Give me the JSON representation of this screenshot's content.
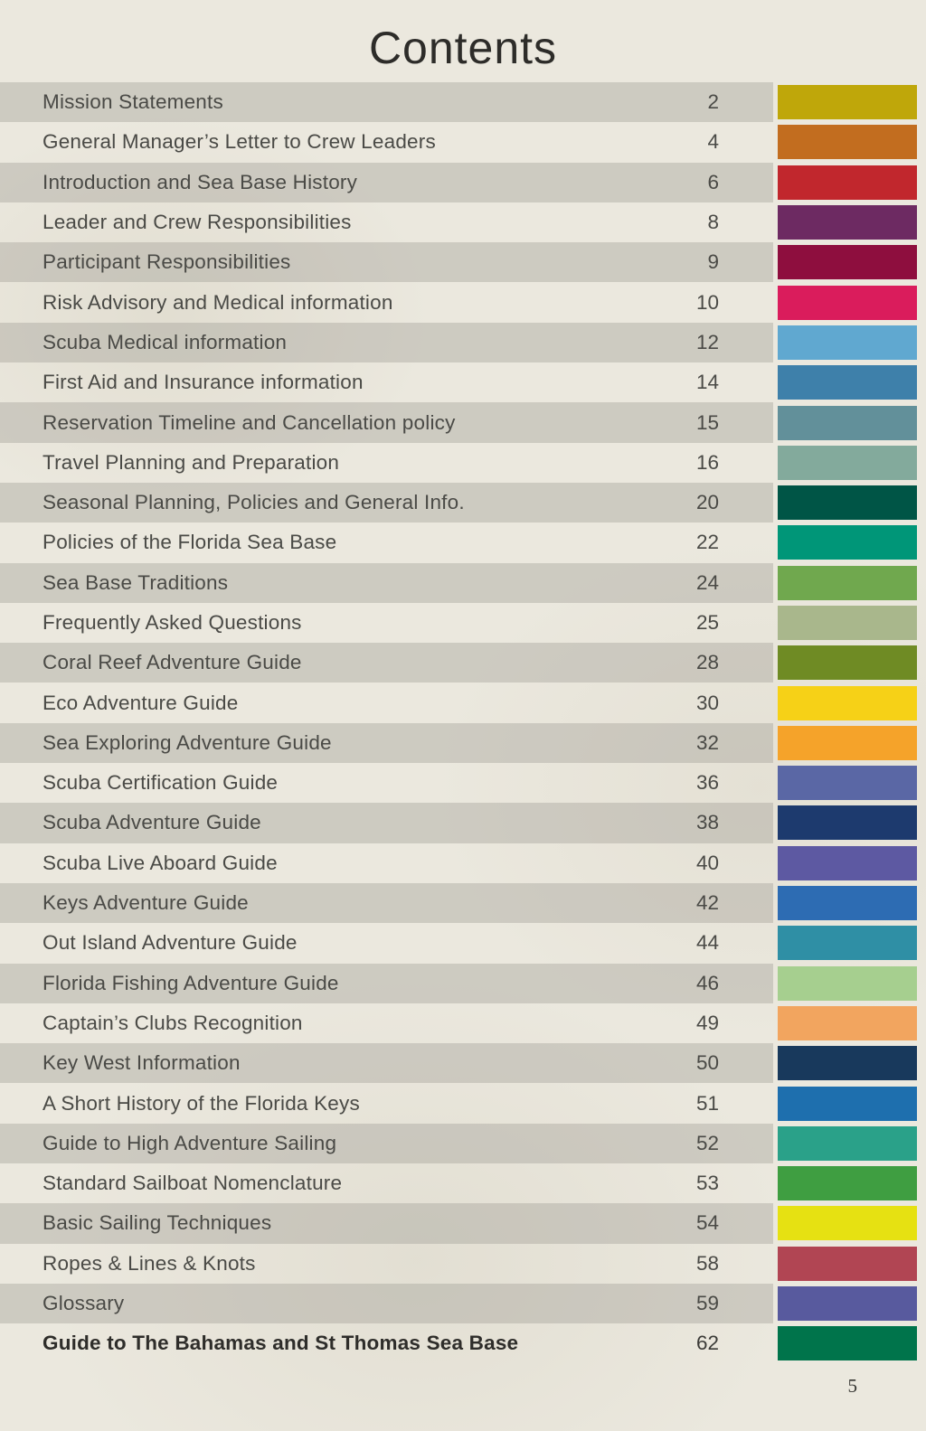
{
  "page": {
    "title": "Contents",
    "footer_page_number": "5"
  },
  "toc": {
    "entries": [
      {
        "label": "Mission Statements",
        "page": "2",
        "color": "#bfa70a",
        "bold": false
      },
      {
        "label": "General Manager’s Letter to Crew Leaders",
        "page": "4",
        "color": "#c26d1f",
        "bold": false
      },
      {
        "label": "Introduction and Sea Base History",
        "page": "6",
        "color": "#c1272d",
        "bold": false
      },
      {
        "label": "Leader and Crew Responsibilities",
        "page": "8",
        "color": "#6d2a62",
        "bold": false
      },
      {
        "label": "Participant Responsibilities",
        "page": "9",
        "color": "#8e0e3e",
        "bold": false
      },
      {
        "label": "Risk Advisory and Medical information",
        "page": "10",
        "color": "#da1c5c",
        "bold": false
      },
      {
        "label": "Scuba Medical information",
        "page": "12",
        "color": "#60a8d0",
        "bold": false
      },
      {
        "label": "First Aid and Insurance information",
        "page": "14",
        "color": "#3e80aa",
        "bold": false
      },
      {
        "label": "Reservation Timeline and Cancellation policy",
        "page": "15",
        "color": "#62909a",
        "bold": false
      },
      {
        "label": "Travel Planning and Preparation",
        "page": "16",
        "color": "#83aa9c",
        "bold": false
      },
      {
        "label": "Seasonal Planning, Policies and General Info.",
        "page": "20",
        "color": "#005546",
        "bold": false
      },
      {
        "label": "Policies of the Florida Sea Base",
        "page": "22",
        "color": "#009678",
        "bold": false
      },
      {
        "label": "Sea Base Traditions",
        "page": "24",
        "color": "#70a84e",
        "bold": false
      },
      {
        "label": "Frequently Asked Questions",
        "page": "25",
        "color": "#a9b78c",
        "bold": false
      },
      {
        "label": "Coral Reef Adventure Guide",
        "page": "28",
        "color": "#6f8b24",
        "bold": false
      },
      {
        "label": "Eco Adventure Guide",
        "page": "30",
        "color": "#f6d117",
        "bold": false
      },
      {
        "label": "Sea Exploring Adventure Guide",
        "page": "32",
        "color": "#f5a32a",
        "bold": false
      },
      {
        "label": "Scuba Certification Guide",
        "page": "36",
        "color": "#5a67a5",
        "bold": false
      },
      {
        "label": "Scuba Adventure Guide",
        "page": "38",
        "color": "#1d3a6e",
        "bold": false
      },
      {
        "label": "Scuba Live Aboard Guide",
        "page": "40",
        "color": "#5d59a2",
        "bold": false
      },
      {
        "label": "Keys Adventure Guide",
        "page": "42",
        "color": "#2d6cb3",
        "bold": false
      },
      {
        "label": "Out Island Adventure Guide",
        "page": "44",
        "color": "#2f8fa5",
        "bold": false
      },
      {
        "label": "Florida Fishing Adventure Guide",
        "page": "46",
        "color": "#a6cf8f",
        "bold": false
      },
      {
        "label": "Captain’s Clubs Recognition",
        "page": "49",
        "color": "#f2a55f",
        "bold": false
      },
      {
        "label": "Key West Information",
        "page": "50",
        "color": "#18395c",
        "bold": false
      },
      {
        "label": "A Short History of the Florida Keys",
        "page": "51",
        "color": "#1e6fae",
        "bold": false
      },
      {
        "label": "Guide to High Adventure Sailing",
        "page": "52",
        "color": "#2aa189",
        "bold": false
      },
      {
        "label": "Standard Sailboat Nomenclature",
        "page": "53",
        "color": "#3f9e41",
        "bold": false
      },
      {
        "label": "Basic Sailing Techniques",
        "page": "54",
        "color": "#e6e112",
        "bold": false
      },
      {
        "label": "Ropes & Lines & Knots",
        "page": "58",
        "color": "#b14553",
        "bold": false
      },
      {
        "label": "Glossary",
        "page": "59",
        "color": "#585a9e",
        "bold": false
      },
      {
        "label": "Guide to The Bahamas and St Thomas Sea Base",
        "page": "62",
        "color": "#00744b",
        "bold": true
      }
    ]
  }
}
